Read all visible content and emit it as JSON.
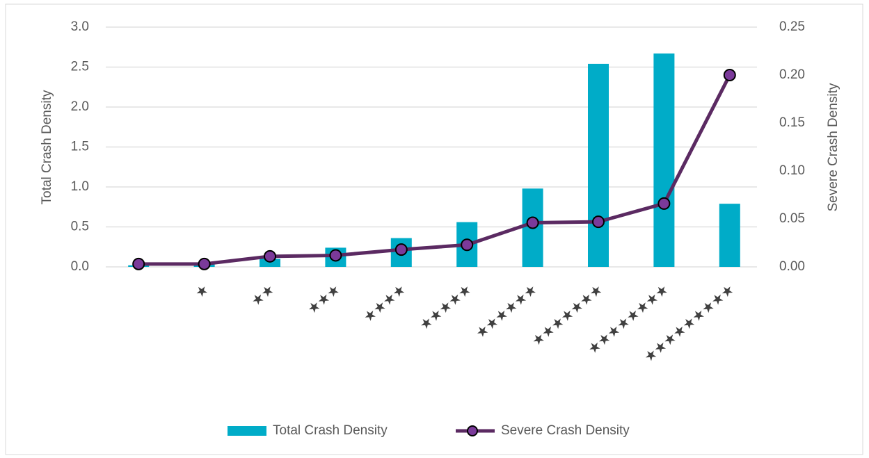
{
  "chart_data": {
    "type": "bar_line",
    "y_label": "Total Crash Density",
    "y2_label": "Severe Crash Density",
    "categories": [
      null,
      "★",
      "★★",
      "★★★",
      "★★★★",
      "★★★★★",
      "★★★★★★",
      "★★★★★★★",
      "★★★★★★★★",
      "★★★★★★★★★"
    ],
    "series": [
      {
        "name": "Total Crash Density",
        "type": "bar",
        "color": "#00acc8",
        "values": [
          0.02,
          0.03,
          0.1,
          0.24,
          0.36,
          0.56,
          0.98,
          2.54,
          2.67,
          0.79
        ]
      },
      {
        "name": "Severe Crash Density",
        "type": "line",
        "axis": "y2",
        "color": "#5b2a62",
        "marker_color": "#7b3a9a",
        "values": [
          0.003,
          0.003,
          0.011,
          0.012,
          0.018,
          0.023,
          0.046,
          0.047,
          0.066,
          0.2
        ]
      }
    ],
    "ylim": [
      0,
      3
    ],
    "yticks": [
      {
        "value": 0,
        "label": "0.0"
      },
      {
        "value": 0.5,
        "label": "0.5"
      },
      {
        "value": 1,
        "label": "1.0"
      },
      {
        "value": 1.5,
        "label": "1.5"
      },
      {
        "value": 2,
        "label": "2.0"
      },
      {
        "value": 2.5,
        "label": "2.5"
      },
      {
        "value": 3,
        "label": "3.0"
      }
    ],
    "y2lim": [
      0,
      0.25
    ],
    "y2ticks": [
      {
        "value": 0,
        "label": "0.00"
      },
      {
        "value": 0.05,
        "label": "0.05"
      },
      {
        "value": 0.1,
        "label": "0.10"
      },
      {
        "value": 0.15,
        "label": "0.15"
      },
      {
        "value": 0.2,
        "label": "0.20"
      },
      {
        "value": 0.25,
        "label": "0.25"
      }
    ],
    "grid": true,
    "legend": "bottom"
  }
}
